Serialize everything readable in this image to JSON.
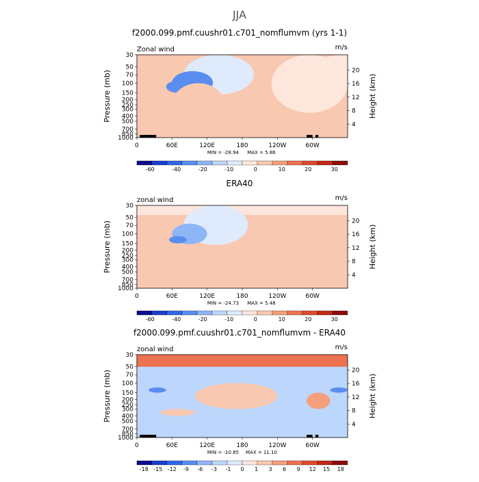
{
  "page_title": "JJA",
  "colors": {
    "fill_cool": [
      "#0c0c8c",
      "#1a3ecf",
      "#3066e6",
      "#5a8df0",
      "#8eb5f6",
      "#bdd6fb",
      "#dfeafd"
    ],
    "fill_warm": [
      "#fde6dc",
      "#f9c8b0",
      "#f59f7c",
      "#ec7250",
      "#de4a2e",
      "#c02a18",
      "#8c0c0c"
    ],
    "terrain": "#000000"
  },
  "chart_data": [
    {
      "type": "contour",
      "panel": "model",
      "title": "f2000.099.pmf.cuushr01.c701_nomflumvm (yrs 1-1)",
      "left_label": "Zonal wind",
      "right_label": "m/s",
      "ylabel": "Pressure (mb)",
      "y2label": "Height (km)",
      "xlim": [
        0,
        360
      ],
      "xticks": [
        "0",
        "60E",
        "120E",
        "180",
        "120W",
        "60W"
      ],
      "xtick_values": [
        0,
        60,
        120,
        180,
        240,
        300
      ],
      "yticks": [
        "30",
        "50",
        "70",
        "100",
        "150",
        "200",
        "250",
        "300",
        "400",
        "500",
        "700",
        "850",
        "1000"
      ],
      "ytick_values": [
        30,
        50,
        70,
        100,
        150,
        200,
        250,
        300,
        400,
        500,
        700,
        850,
        1000
      ],
      "y2ticks": [
        "20",
        "16",
        "12",
        "8",
        "4"
      ],
      "y2tick_values": [
        20,
        16,
        12,
        8,
        4
      ],
      "ylim": [
        1000,
        30
      ],
      "min_label": "MIN = -28.94",
      "max_label": "MAX = 5.86",
      "min": -28.94,
      "max": 5.86,
      "colorbar_labels": [
        "-60",
        "-40",
        "-20",
        "-10",
        "0",
        "10",
        "20",
        "30"
      ],
      "colorbar_levels": [
        -70,
        -60,
        -50,
        -40,
        -30,
        -20,
        -15,
        -10,
        -5,
        0,
        5,
        10,
        15,
        20,
        25,
        30,
        35
      ],
      "features": [
        {
          "lon": 0,
          "p": 1000,
          "lon_span": 360,
          "p_span": 970,
          "value": 2
        },
        {
          "lon": 80,
          "p": 160,
          "lon_span": 120,
          "p_span": 180,
          "value": -8
        },
        {
          "lon": 60,
          "p": 160,
          "lon_span": 70,
          "p_span": 100,
          "value": -22
        },
        {
          "lon": 50,
          "p": 150,
          "lon_span": 40,
          "p_span": 60,
          "value": -28
        },
        {
          "lon": 230,
          "p": 350,
          "lon_span": 130,
          "p_span": 650,
          "value": -3
        },
        {
          "lon": 300,
          "p": 90,
          "lon_span": 110,
          "p_span": 60,
          "value": -3
        },
        {
          "lon": 60,
          "p": 600,
          "lon_span": 90,
          "p_span": 500,
          "value": 3
        }
      ],
      "terrain": [
        {
          "lon_start": 5,
          "lon_end": 25
        },
        {
          "lon_start": 25,
          "lon_end": 33
        },
        {
          "lon_start": 290,
          "lon_end": 300
        },
        {
          "lon_start": 305,
          "lon_end": 310
        }
      ]
    },
    {
      "type": "contour",
      "panel": "obs",
      "title": "ERA40",
      "left_label": "zonal wind",
      "right_label": "m/s",
      "ylabel": "Pressure (mb)",
      "y2label": "Height (km)",
      "xlim": [
        0,
        360
      ],
      "xticks": [
        "0",
        "60E",
        "120E",
        "180",
        "120W",
        "60W"
      ],
      "xtick_values": [
        0,
        60,
        120,
        180,
        240,
        300
      ],
      "yticks": [
        "30",
        "50",
        "70",
        "100",
        "150",
        "200",
        "250",
        "300",
        "400",
        "500",
        "700",
        "850",
        "1000"
      ],
      "ytick_values": [
        30,
        50,
        70,
        100,
        150,
        200,
        250,
        300,
        400,
        500,
        700,
        850,
        1000
      ],
      "y2ticks": [
        "20",
        "16",
        "12",
        "8",
        "4"
      ],
      "y2tick_values": [
        20,
        16,
        12,
        8,
        4
      ],
      "ylim": [
        1000,
        30
      ],
      "min_label": "MIN = -24.73",
      "max_label": "MAX = 5.48",
      "min": -24.73,
      "max": 5.48,
      "colorbar_labels": [
        "-60",
        "-40",
        "-20",
        "-10",
        "0",
        "10",
        "20",
        "30"
      ],
      "colorbar_levels": [
        -70,
        -60,
        -50,
        -40,
        -30,
        -20,
        -15,
        -10,
        -5,
        0,
        5,
        10,
        15,
        20,
        25,
        30,
        35
      ],
      "features": [
        {
          "lon": 0,
          "p": 1000,
          "lon_span": 360,
          "p_span": 970,
          "value": 2
        },
        {
          "lon": 0,
          "p": 45,
          "lon_span": 360,
          "p_span": 15,
          "value": -4
        },
        {
          "lon": 80,
          "p": 160,
          "lon_span": 110,
          "p_span": 180,
          "value": -8
        },
        {
          "lon": 60,
          "p": 155,
          "lon_span": 60,
          "p_span": 90,
          "value": -18
        },
        {
          "lon": 55,
          "p": 150,
          "lon_span": 30,
          "p_span": 40,
          "value": -24
        },
        {
          "lon": 250,
          "p": 200,
          "lon_span": 110,
          "p_span": 150,
          "value": 3
        }
      ],
      "terrain": []
    },
    {
      "type": "contour",
      "panel": "difference",
      "title": "f2000.099.pmf.cuushr01.c701_nomflumvm - ERA40",
      "left_label": "zonal wind",
      "right_label": "m/s",
      "ylabel": "Pressure (mb)",
      "y2label": "Height (km)",
      "xlim": [
        0,
        360
      ],
      "xticks": [
        "0",
        "60E",
        "120E",
        "180",
        "120W",
        "60W"
      ],
      "xtick_values": [
        0,
        60,
        120,
        180,
        240,
        300
      ],
      "yticks": [
        "30",
        "50",
        "70",
        "100",
        "150",
        "200",
        "250",
        "300",
        "400",
        "500",
        "700",
        "850",
        "1000"
      ],
      "ytick_values": [
        30,
        50,
        70,
        100,
        150,
        200,
        250,
        300,
        400,
        500,
        700,
        850,
        1000
      ],
      "y2ticks": [
        "20",
        "16",
        "12",
        "8",
        "4"
      ],
      "y2tick_values": [
        20,
        16,
        12,
        8,
        4
      ],
      "ylim": [
        1000,
        30
      ],
      "min_label": "MIN = -10.85",
      "max_label": "MAX = 11.10",
      "min": -10.85,
      "max": 11.1,
      "colorbar_labels": [
        "-18",
        "-15",
        "-12",
        "-9",
        "-6",
        "-3",
        "-1",
        "0",
        "1",
        "3",
        "6",
        "9",
        "12",
        "15",
        "18"
      ],
      "colorbar_levels": [
        -20,
        -18,
        -15,
        -12,
        -9,
        -6,
        -3,
        -1,
        0,
        1,
        3,
        6,
        9,
        12,
        15,
        18,
        20
      ],
      "features": [
        {
          "lon": 0,
          "p": 1000,
          "lon_span": 360,
          "p_span": 970,
          "value": -2
        },
        {
          "lon": 0,
          "p": 50,
          "lon_span": 360,
          "p_span": 20,
          "value": 6
        },
        {
          "lon": 0,
          "p": 37,
          "lon_span": 360,
          "p_span": 7,
          "value": 10
        },
        {
          "lon": 100,
          "p": 300,
          "lon_span": 140,
          "p_span": 200,
          "value": 2
        },
        {
          "lon": 20,
          "p": 150,
          "lon_span": 30,
          "p_span": 30,
          "value": -9
        },
        {
          "lon": 330,
          "p": 150,
          "lon_span": 30,
          "p_span": 30,
          "value": -9
        },
        {
          "lon": 290,
          "p": 300,
          "lon_span": 40,
          "p_span": 150,
          "value": 5
        },
        {
          "lon": 40,
          "p": 400,
          "lon_span": 60,
          "p_span": 100,
          "value": 1
        }
      ],
      "terrain": [
        {
          "lon_start": 5,
          "lon_end": 25
        },
        {
          "lon_start": 25,
          "lon_end": 33
        },
        {
          "lon_start": 290,
          "lon_end": 300
        },
        {
          "lon_start": 305,
          "lon_end": 310
        }
      ]
    }
  ]
}
